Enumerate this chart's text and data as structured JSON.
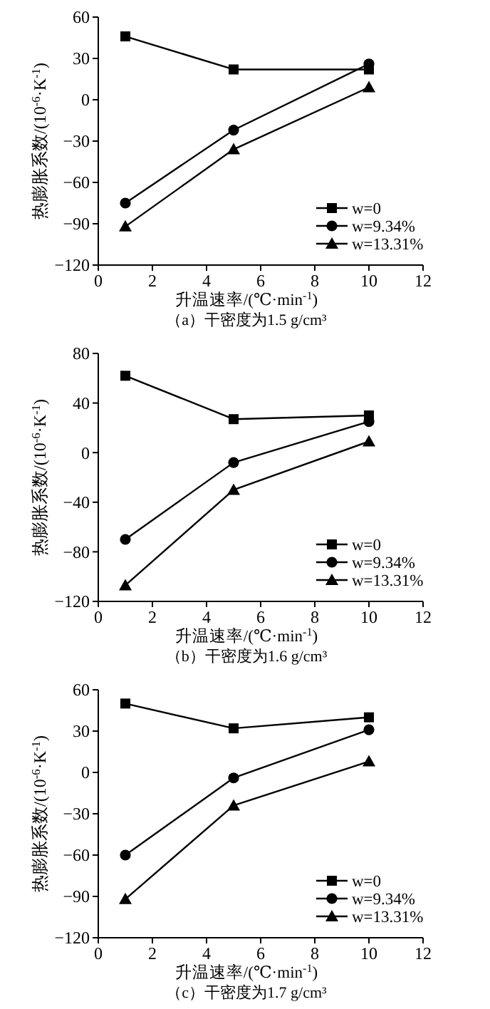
{
  "chart_data": [
    {
      "type": "line",
      "title": "（a）干密度为1.5 g/cm³",
      "xlabel": "升温速率/(℃·min$^{-1}$)",
      "ylabel": "热膨胀系数/(10$^{-6}$·K$^{-1}$)",
      "x": [
        1,
        5,
        10
      ],
      "xlim": [
        0,
        12
      ],
      "xticks": [
        0,
        2,
        4,
        6,
        8,
        10,
        12
      ],
      "ylim": [
        -120,
        60
      ],
      "yticks": [
        -120,
        -90,
        -60,
        -30,
        0,
        30,
        60
      ],
      "legend": "bottom right",
      "grid": false,
      "series": [
        {
          "name": "w=0",
          "color": "#000000",
          "marker": "square",
          "values": [
            46,
            22,
            22
          ]
        },
        {
          "name": "w=9.34%",
          "color": "#000000",
          "marker": "circle",
          "values": [
            -75,
            -22,
            26
          ]
        },
        {
          "name": "w=13.31%",
          "color": "#000000",
          "marker": "triangle",
          "values": [
            -92,
            -36,
            9
          ]
        }
      ]
    },
    {
      "type": "line",
      "title": "（b）干密度为1.6 g/cm³",
      "xlabel": "升温速率/(℃·min$^{-1}$)",
      "ylabel": "热膨胀系数/(10$^{-6}$·K$^{-1}$)",
      "x": [
        1,
        5,
        10
      ],
      "xlim": [
        0,
        12
      ],
      "xticks": [
        0,
        2,
        4,
        6,
        8,
        10,
        12
      ],
      "ylim": [
        -120,
        80
      ],
      "yticks": [
        -120,
        -80,
        -40,
        0,
        40,
        80
      ],
      "legend": "bottom right",
      "grid": false,
      "series": [
        {
          "name": "w=0",
          "color": "#000000",
          "marker": "square",
          "values": [
            62,
            27,
            30
          ]
        },
        {
          "name": "w=9.34%",
          "color": "#000000",
          "marker": "circle",
          "values": [
            -70,
            -8,
            25
          ]
        },
        {
          "name": "w=13.31%",
          "color": "#000000",
          "marker": "triangle",
          "values": [
            -107,
            -30,
            9
          ]
        }
      ]
    },
    {
      "type": "line",
      "title": "（c）干密度为1.7 g/cm³",
      "xlabel": "升温速率/(℃·min$^{-1}$)",
      "ylabel": "热膨胀系数/(10$^{-6}$·K$^{-1}$)",
      "x": [
        1,
        5,
        10
      ],
      "xlim": [
        0,
        12
      ],
      "xticks": [
        0,
        2,
        4,
        6,
        8,
        10,
        12
      ],
      "ylim": [
        -120,
        60
      ],
      "yticks": [
        -120,
        -90,
        -60,
        -30,
        0,
        30,
        60
      ],
      "legend": "bottom right",
      "grid": false,
      "series": [
        {
          "name": "w=0",
          "color": "#000000",
          "marker": "square",
          "values": [
            50,
            32,
            40
          ]
        },
        {
          "name": "w=9.34%",
          "color": "#000000",
          "marker": "circle",
          "values": [
            -60,
            -4,
            31
          ]
        },
        {
          "name": "w=13.31%",
          "color": "#000000",
          "marker": "triangle",
          "values": [
            -92,
            -24,
            8
          ]
        }
      ]
    }
  ]
}
